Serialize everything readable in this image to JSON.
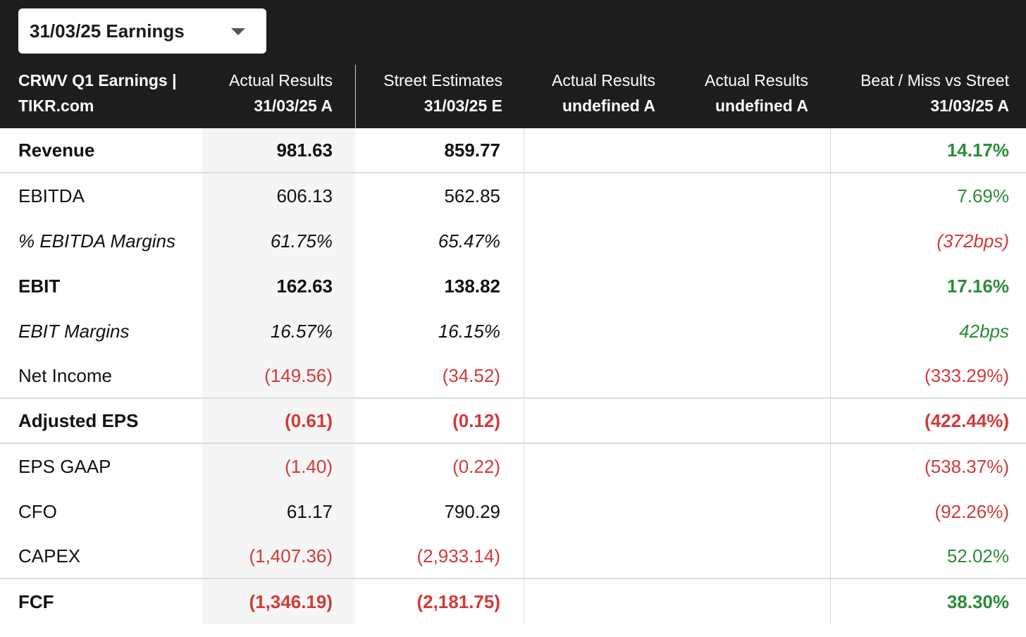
{
  "dropdown": {
    "selected": "31/03/25 Earnings"
  },
  "header": {
    "title_line1": "CRWV Q1 Earnings |",
    "title_line2": "TIKR.com",
    "columns": [
      {
        "line1": "Actual Results",
        "line2": "31/03/25 A"
      },
      {
        "line1": "Street Estimates",
        "line2": "31/03/25 E"
      },
      {
        "line1": "Actual Results",
        "line2": "undefined A"
      },
      {
        "line1": "Actual Results",
        "line2": "undefined A"
      },
      {
        "line1": "Beat / Miss vs Street",
        "line2": "31/03/25 A"
      }
    ]
  },
  "rows": [
    {
      "label": "Revenue",
      "actual": "981.63",
      "estimate": "859.77",
      "beat": "14.17%"
    },
    {
      "label": "EBITDA",
      "actual": "606.13",
      "estimate": "562.85",
      "beat": "7.69%"
    },
    {
      "label": "% EBITDA Margins",
      "actual": "61.75%",
      "estimate": "65.47%",
      "beat": "(372bps)"
    },
    {
      "label": "EBIT",
      "actual": "162.63",
      "estimate": "138.82",
      "beat": "17.16%"
    },
    {
      "label": "EBIT Margins",
      "actual": "16.57%",
      "estimate": "16.15%",
      "beat": "42bps"
    },
    {
      "label": "Net Income",
      "actual": "(149.56)",
      "estimate": "(34.52)",
      "beat": "(333.29%)"
    },
    {
      "label": "Adjusted EPS",
      "actual": "(0.61)",
      "estimate": "(0.12)",
      "beat": "(422.44%)"
    },
    {
      "label": "EPS GAAP",
      "actual": "(1.40)",
      "estimate": "(0.22)",
      "beat": "(538.37%)"
    },
    {
      "label": "CFO",
      "actual": "61.17",
      "estimate": "790.29",
      "beat": "(92.26%)"
    },
    {
      "label": "CAPEX",
      "actual": "(1,407.36)",
      "estimate": "(2,933.14)",
      "beat": "52.02%"
    },
    {
      "label": "FCF",
      "actual": "(1,346.19)",
      "estimate": "(2,181.75)",
      "beat": "38.30%"
    }
  ],
  "colors": {
    "header_bg": "#1d1d1d",
    "negative": "#d23a3a",
    "positive": "#2e8b3a",
    "actual_column_bg": "#f5f5f5"
  }
}
